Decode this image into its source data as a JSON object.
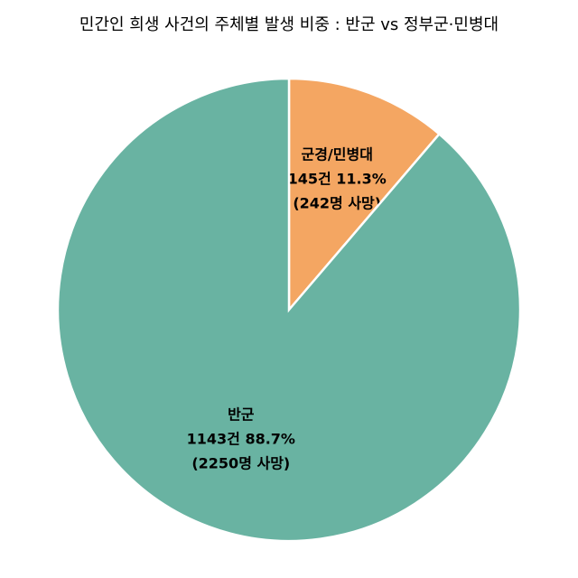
{
  "chart_data": {
    "type": "pie",
    "title": "민간인 희생 사건의 주체별 발생 비중 : 반군 vs 정부군·민병대",
    "categories": [
      "군경/민병대",
      "반군"
    ],
    "values": [
      145,
      1143
    ],
    "value_labels": [
      "145건 11.3%",
      "1143건 88.7%"
    ],
    "sublabels": [
      "(242명 사망)",
      "(2250명 사망)"
    ],
    "colors": [
      "#f4a662",
      "#69b3a2"
    ]
  }
}
